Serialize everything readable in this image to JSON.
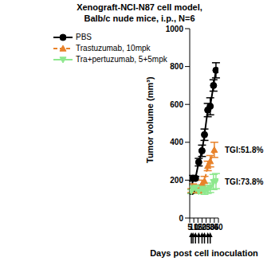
{
  "chart_data": {
    "type": "line",
    "title": [
      "Xenograft-NCI-N87 cell model,",
      "Balb/c nude mice, i.p., N=6"
    ],
    "x_label": "Days post cell inoculation",
    "y_label": "Tumor volume (mm³)",
    "xlim": [
      5,
      40
    ],
    "xticks": [
      5,
      10,
      15,
      20,
      25,
      30,
      35,
      40
    ],
    "ylim": [
      0,
      1000
    ],
    "yticks": [
      0,
      200,
      400,
      600,
      800,
      1000
    ],
    "grid": false,
    "legend": "upper left",
    "dosing_days": [
      7,
      9,
      12,
      16,
      20,
      23,
      27,
      30
    ],
    "series": [
      {
        "name": "PBS",
        "color": "#000000",
        "marker": "circle",
        "line_style": "solid",
        "x": [
          7,
          9,
          12,
          16,
          20,
          23,
          27,
          30,
          34,
          37
        ],
        "values": [
          140,
          210,
          210,
          295,
          355,
          440,
          570,
          590,
          700,
          780
        ],
        "errors": [
          10,
          15,
          10,
          20,
          30,
          30,
          35,
          45,
          30,
          40
        ]
      },
      {
        "name": "Trastuzumab, 10mpk",
        "color": "#e8822a",
        "marker": "triangle",
        "line_style": "dashed",
        "x": [
          7,
          9,
          12,
          16,
          20,
          23,
          27,
          30,
          35
        ],
        "values": [
          145,
          165,
          160,
          145,
          180,
          195,
          275,
          300,
          360
        ],
        "errors": [
          10,
          15,
          15,
          10,
          20,
          25,
          25,
          30,
          40
        ],
        "annotation": "TGI:51.8%"
      },
      {
        "name": "Tra+pertuzumab, 5+5mpk",
        "color": "#8ee88e",
        "marker": "triangle-down",
        "line_style": "solid",
        "x": [
          7,
          9,
          12,
          16,
          20,
          23,
          27,
          30,
          34,
          37
        ],
        "values": [
          140,
          155,
          160,
          140,
          155,
          140,
          150,
          160,
          190,
          195
        ],
        "errors": [
          10,
          15,
          10,
          10,
          20,
          15,
          20,
          25,
          40,
          40
        ],
        "annotation": "TGI:73.8%"
      }
    ]
  }
}
